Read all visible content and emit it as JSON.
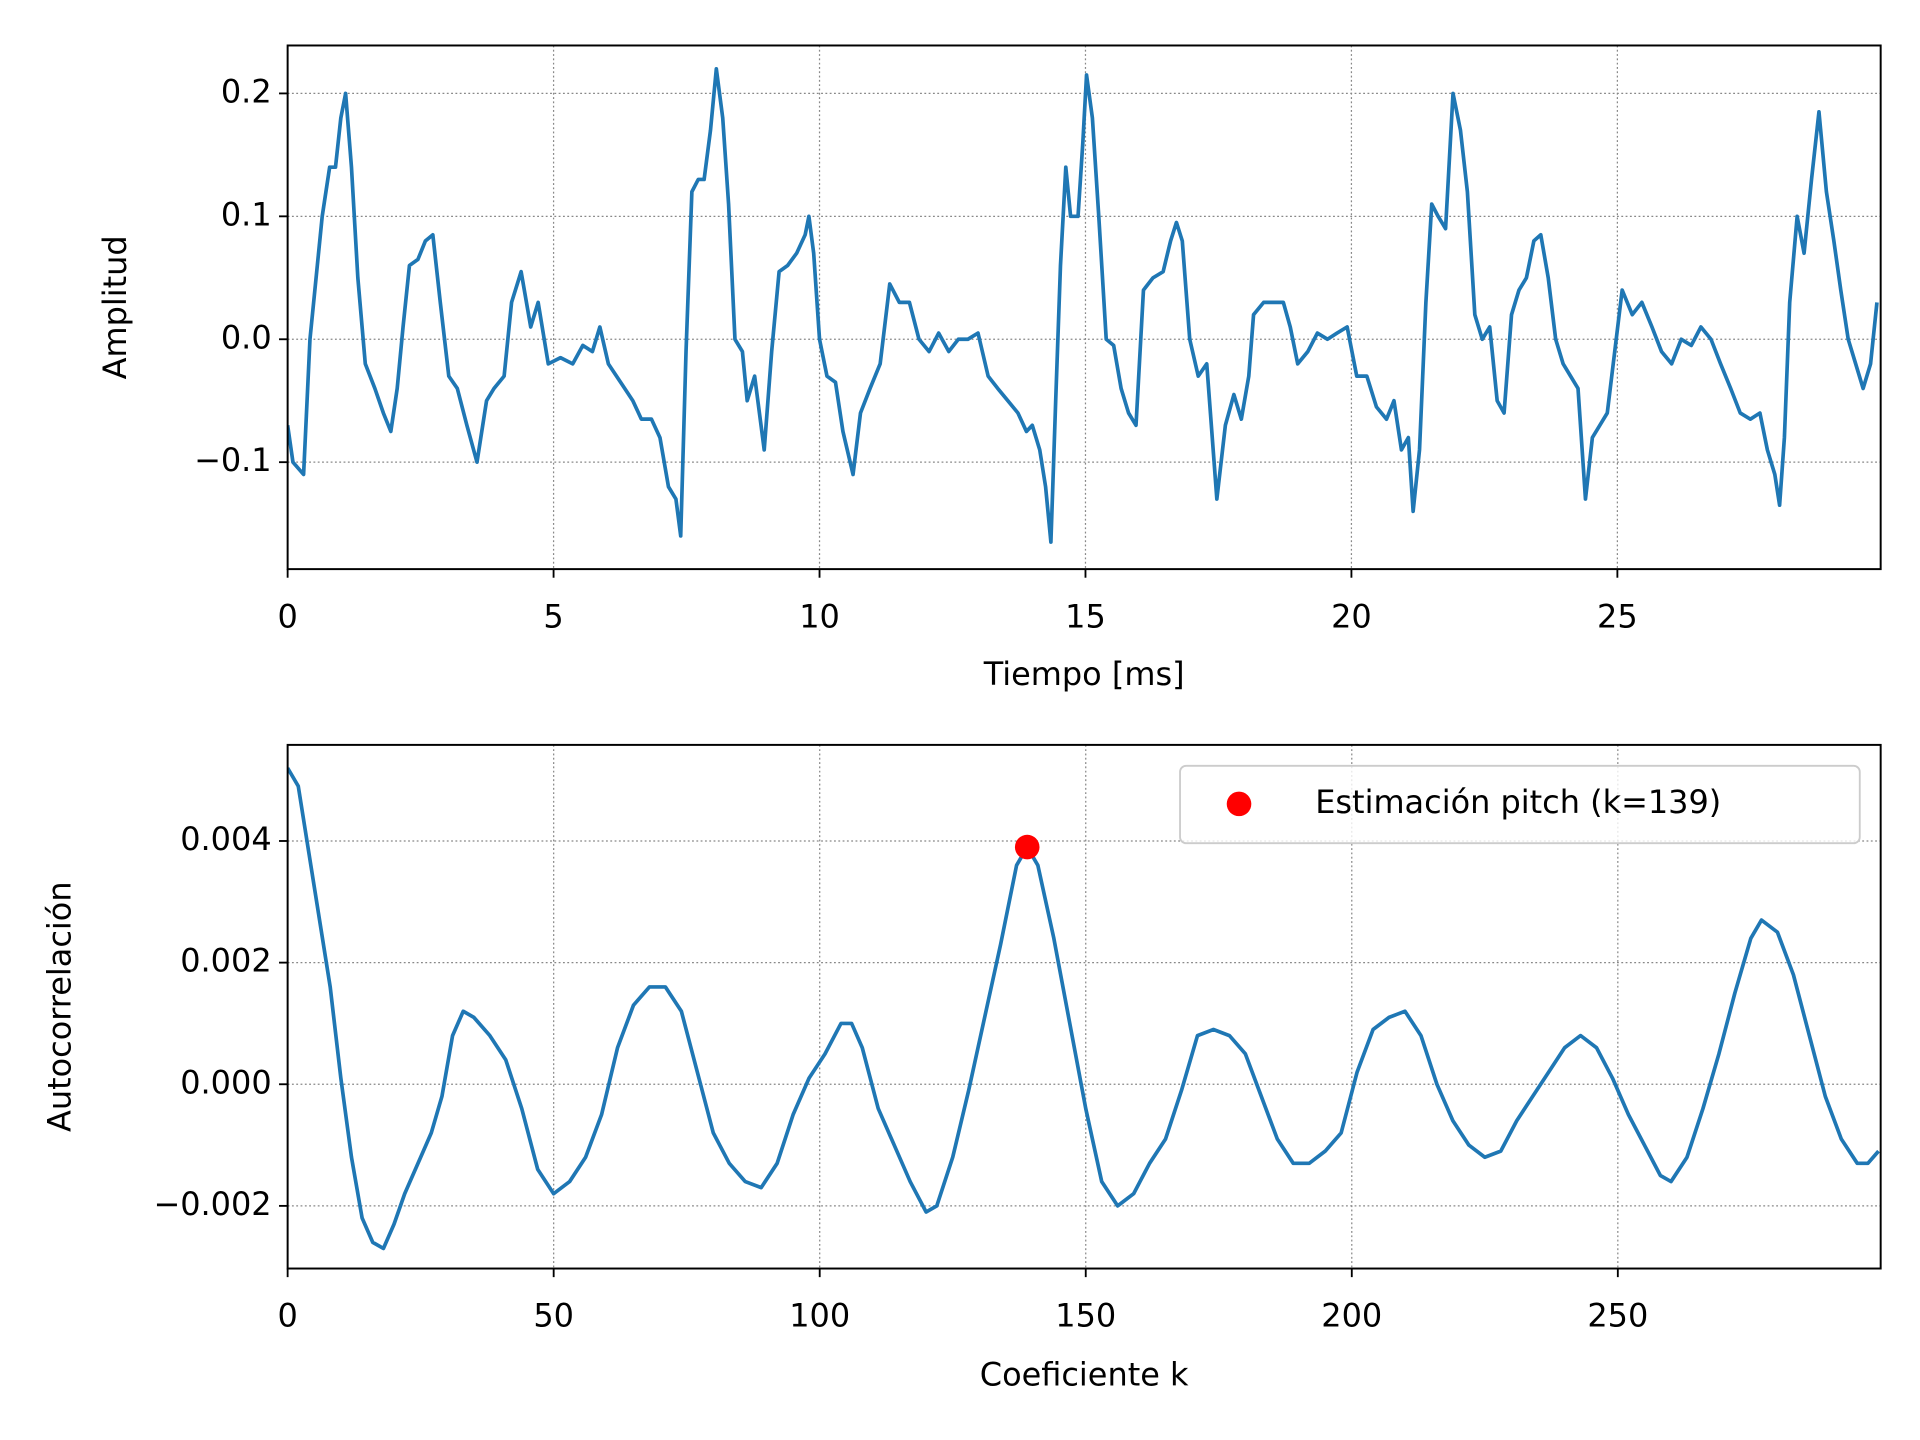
{
  "chart_data": [
    {
      "type": "line",
      "xlabel": "Tiempo [ms]",
      "ylabel": "Amplitud",
      "xlim": [
        0,
        29.95
      ],
      "ylim": [
        -0.187,
        0.239
      ],
      "xticks": [
        0,
        5,
        10,
        15,
        20,
        25
      ],
      "yticks": [
        {
          "value": -0.1,
          "label": "−0.1"
        },
        {
          "value": 0,
          "label": "0.0"
        },
        0.1,
        0.2
      ],
      "grid": true,
      "series": [
        {
          "color": "#1f77b4",
          "x": [
            0,
            0.1,
            0.3,
            0.42,
            0.65,
            0.79,
            0.9,
            1.0,
            1.09,
            1.2,
            1.32,
            1.46,
            1.64,
            1.8,
            1.94,
            2.06,
            2.17,
            2.29,
            2.45,
            2.59,
            2.73,
            2.87,
            3.03,
            3.19,
            3.37,
            3.56,
            3.74,
            3.88,
            4.07,
            4.21,
            4.39,
            4.57,
            4.71,
            4.9,
            5.13,
            5.36,
            5.55,
            5.73,
            5.87,
            6.03,
            6.26,
            6.49,
            6.65,
            6.84,
            7.0,
            7.16,
            7.3,
            7.39,
            7.49,
            7.6,
            7.72,
            7.83,
            7.95,
            8.06,
            8.18,
            8.29,
            8.41,
            8.55,
            8.64,
            8.78,
            8.96,
            9.1,
            9.24,
            9.4,
            9.57,
            9.73,
            9.8,
            9.89,
            10.0,
            10.14,
            10.3,
            10.44,
            10.63,
            10.77,
            10.95,
            11.14,
            11.32,
            11.5,
            11.69,
            11.87,
            12.06,
            12.24,
            12.43,
            12.61,
            12.79,
            12.98,
            13.17,
            13.35,
            13.54,
            13.73,
            13.89,
            14.0,
            14.14,
            14.25,
            14.35,
            14.44,
            14.53,
            14.63,
            14.72,
            14.86,
            14.95,
            15.02,
            15.13,
            15.25,
            15.39,
            15.53,
            15.67,
            15.81,
            15.95,
            16.09,
            16.27,
            16.46,
            16.6,
            16.71,
            16.82,
            16.96,
            17.12,
            17.28,
            17.47,
            17.63,
            17.79,
            17.93,
            18.07,
            18.16,
            18.35,
            18.53,
            18.72,
            18.85,
            18.99,
            19.18,
            19.36,
            19.55,
            19.73,
            19.92,
            20.1,
            20.29,
            20.47,
            20.66,
            20.8,
            20.94,
            21.07,
            21.16,
            21.28,
            21.4,
            21.51,
            21.63,
            21.77,
            21.91,
            22.05,
            22.18,
            22.32,
            22.46,
            22.6,
            22.74,
            22.87,
            23.01,
            23.15,
            23.29,
            23.43,
            23.56,
            23.7,
            23.84,
            23.98,
            24.12,
            24.26,
            24.4,
            24.53,
            24.67,
            24.81,
            24.95,
            25.09,
            25.28,
            25.46,
            25.65,
            25.83,
            26.02,
            26.2,
            26.39,
            26.57,
            26.76,
            26.94,
            27.13,
            27.31,
            27.5,
            27.68,
            27.82,
            27.96,
            28.05,
            28.14,
            28.24,
            28.38,
            28.51,
            28.65,
            28.79,
            28.93,
            29.07,
            29.2,
            29.34,
            29.48,
            29.62,
            29.76,
            29.88
          ],
          "values": [
            -0.07,
            -0.1,
            -0.11,
            0.0,
            0.1,
            0.14,
            0.14,
            0.18,
            0.2,
            0.14,
            0.05,
            -0.02,
            -0.04,
            -0.06,
            -0.075,
            -0.04,
            0.01,
            0.06,
            0.065,
            0.08,
            0.085,
            0.03,
            -0.03,
            -0.04,
            -0.07,
            -0.1,
            -0.05,
            -0.04,
            -0.03,
            0.03,
            0.055,
            0.01,
            0.03,
            -0.02,
            -0.015,
            -0.02,
            -0.005,
            -0.01,
            0.01,
            -0.02,
            -0.035,
            -0.05,
            -0.065,
            -0.065,
            -0.08,
            -0.12,
            -0.13,
            -0.16,
            -0.01,
            0.12,
            0.13,
            0.13,
            0.17,
            0.22,
            0.18,
            0.11,
            0.0,
            -0.01,
            -0.05,
            -0.03,
            -0.09,
            -0.01,
            0.055,
            0.06,
            0.07,
            0.085,
            0.1,
            0.07,
            0.0,
            -0.03,
            -0.035,
            -0.075,
            -0.11,
            -0.06,
            -0.04,
            -0.02,
            0.045,
            0.03,
            0.03,
            0.0,
            -0.01,
            0.005,
            -0.01,
            0.0,
            0.0,
            0.005,
            -0.03,
            -0.04,
            -0.05,
            -0.06,
            -0.075,
            -0.07,
            -0.09,
            -0.12,
            -0.165,
            -0.05,
            0.06,
            0.14,
            0.1,
            0.1,
            0.16,
            0.215,
            0.18,
            0.1,
            0.0,
            -0.005,
            -0.04,
            -0.06,
            -0.07,
            0.04,
            0.05,
            0.055,
            0.08,
            0.095,
            0.08,
            0.0,
            -0.03,
            -0.02,
            -0.13,
            -0.07,
            -0.045,
            -0.065,
            -0.03,
            0.02,
            0.03,
            0.03,
            0.03,
            0.01,
            -0.02,
            -0.01,
            0.005,
            0.0,
            0.005,
            0.01,
            -0.03,
            -0.03,
            -0.055,
            -0.065,
            -0.05,
            -0.09,
            -0.08,
            -0.14,
            -0.09,
            0.03,
            0.11,
            0.1,
            0.09,
            0.2,
            0.17,
            0.12,
            0.02,
            0.0,
            0.01,
            -0.05,
            -0.06,
            0.02,
            0.04,
            0.05,
            0.08,
            0.085,
            0.05,
            0.0,
            -0.02,
            -0.03,
            -0.04,
            -0.13,
            -0.08,
            -0.07,
            -0.06,
            -0.01,
            0.04,
            0.02,
            0.03,
            0.01,
            -0.01,
            -0.02,
            0.0,
            -0.005,
            0.01,
            0.0,
            -0.02,
            -0.04,
            -0.06,
            -0.065,
            -0.06,
            -0.09,
            -0.11,
            -0.135,
            -0.08,
            0.03,
            0.1,
            0.07,
            0.13,
            0.185,
            0.12,
            0.08,
            0.04,
            0.0,
            -0.02,
            -0.04,
            -0.02,
            0.03
          ]
        }
      ]
    },
    {
      "type": "line",
      "xlabel": "Coeficiente k",
      "ylabel": "Autocorrelación",
      "xlim": [
        0,
        299.4
      ],
      "ylim": [
        -0.00303,
        0.00558
      ],
      "xticks": [
        0,
        50,
        100,
        150,
        200,
        250
      ],
      "yticks": [
        {
          "value": -0.002,
          "label": "−0.002"
        },
        {
          "value": 0,
          "label": "0.000"
        },
        0.002,
        0.004
      ],
      "grid": true,
      "legend": "upper right",
      "series": [
        {
          "color": "#1f77b4",
          "x": [
            0,
            2,
            4,
            6,
            8,
            10,
            12,
            14,
            16,
            18,
            20,
            22,
            25,
            27,
            29,
            31,
            33,
            35,
            38,
            41,
            44,
            47,
            50,
            53,
            56,
            59,
            62,
            65,
            68,
            71,
            74,
            77,
            80,
            83,
            86,
            89,
            92,
            95,
            98,
            101,
            104,
            106,
            108,
            111,
            114,
            117,
            120,
            122,
            125,
            128,
            131,
            134,
            137,
            139,
            141,
            144,
            147,
            150,
            153,
            156,
            159,
            162,
            165,
            168,
            171,
            174,
            177,
            180,
            183,
            186,
            189,
            192,
            195,
            198,
            201,
            204,
            207,
            210,
            213,
            216,
            219,
            222,
            225,
            228,
            231,
            234,
            237,
            240,
            243,
            246,
            249,
            252,
            255,
            258,
            260,
            263,
            266,
            269,
            272,
            275,
            277,
            280,
            283,
            286,
            289,
            292,
            295,
            297,
            299
          ],
          "values": [
            0.0052,
            0.0049,
            0.0038,
            0.0027,
            0.0016,
            0.0001,
            -0.0012,
            -0.0022,
            -0.0026,
            -0.0027,
            -0.0023,
            -0.0018,
            -0.0012,
            -0.0008,
            -0.0002,
            0.0008,
            0.0012,
            0.0011,
            0.0008,
            0.0004,
            -0.0004,
            -0.0014,
            -0.0018,
            -0.0016,
            -0.0012,
            -0.0005,
            0.0006,
            0.0013,
            0.0016,
            0.0016,
            0.0012,
            0.0002,
            -0.0008,
            -0.0013,
            -0.0016,
            -0.0017,
            -0.0013,
            -0.0005,
            0.0001,
            0.0005,
            0.001,
            0.001,
            0.0006,
            -0.0004,
            -0.001,
            -0.0016,
            -0.0021,
            -0.002,
            -0.0012,
            -0.0001,
            0.0011,
            0.0023,
            0.0036,
            0.0039,
            0.0036,
            0.0024,
            0.001,
            -0.0004,
            -0.0016,
            -0.002,
            -0.0018,
            -0.0013,
            -0.0009,
            -0.0001,
            0.0008,
            0.0009,
            0.0008,
            0.0005,
            -0.0002,
            -0.0009,
            -0.0013,
            -0.0013,
            -0.0011,
            -0.0008,
            0.0002,
            0.0009,
            0.0011,
            0.0012,
            0.0008,
            0.0,
            -0.0006,
            -0.001,
            -0.0012,
            -0.0011,
            -0.0006,
            -0.0002,
            0.0002,
            0.0006,
            0.0008,
            0.0006,
            0.0001,
            -0.0005,
            -0.001,
            -0.0015,
            -0.0016,
            -0.0012,
            -0.0004,
            0.0005,
            0.0015,
            0.0024,
            0.0027,
            0.0025,
            0.0018,
            0.0008,
            -0.0002,
            -0.0009,
            -0.0013,
            -0.0013,
            -0.0011
          ]
        },
        {
          "name": "Estimación pitch (k=139)",
          "color": "#ff0000",
          "markers": true,
          "x": [
            139
          ],
          "values": [
            0.0039
          ]
        }
      ]
    }
  ]
}
